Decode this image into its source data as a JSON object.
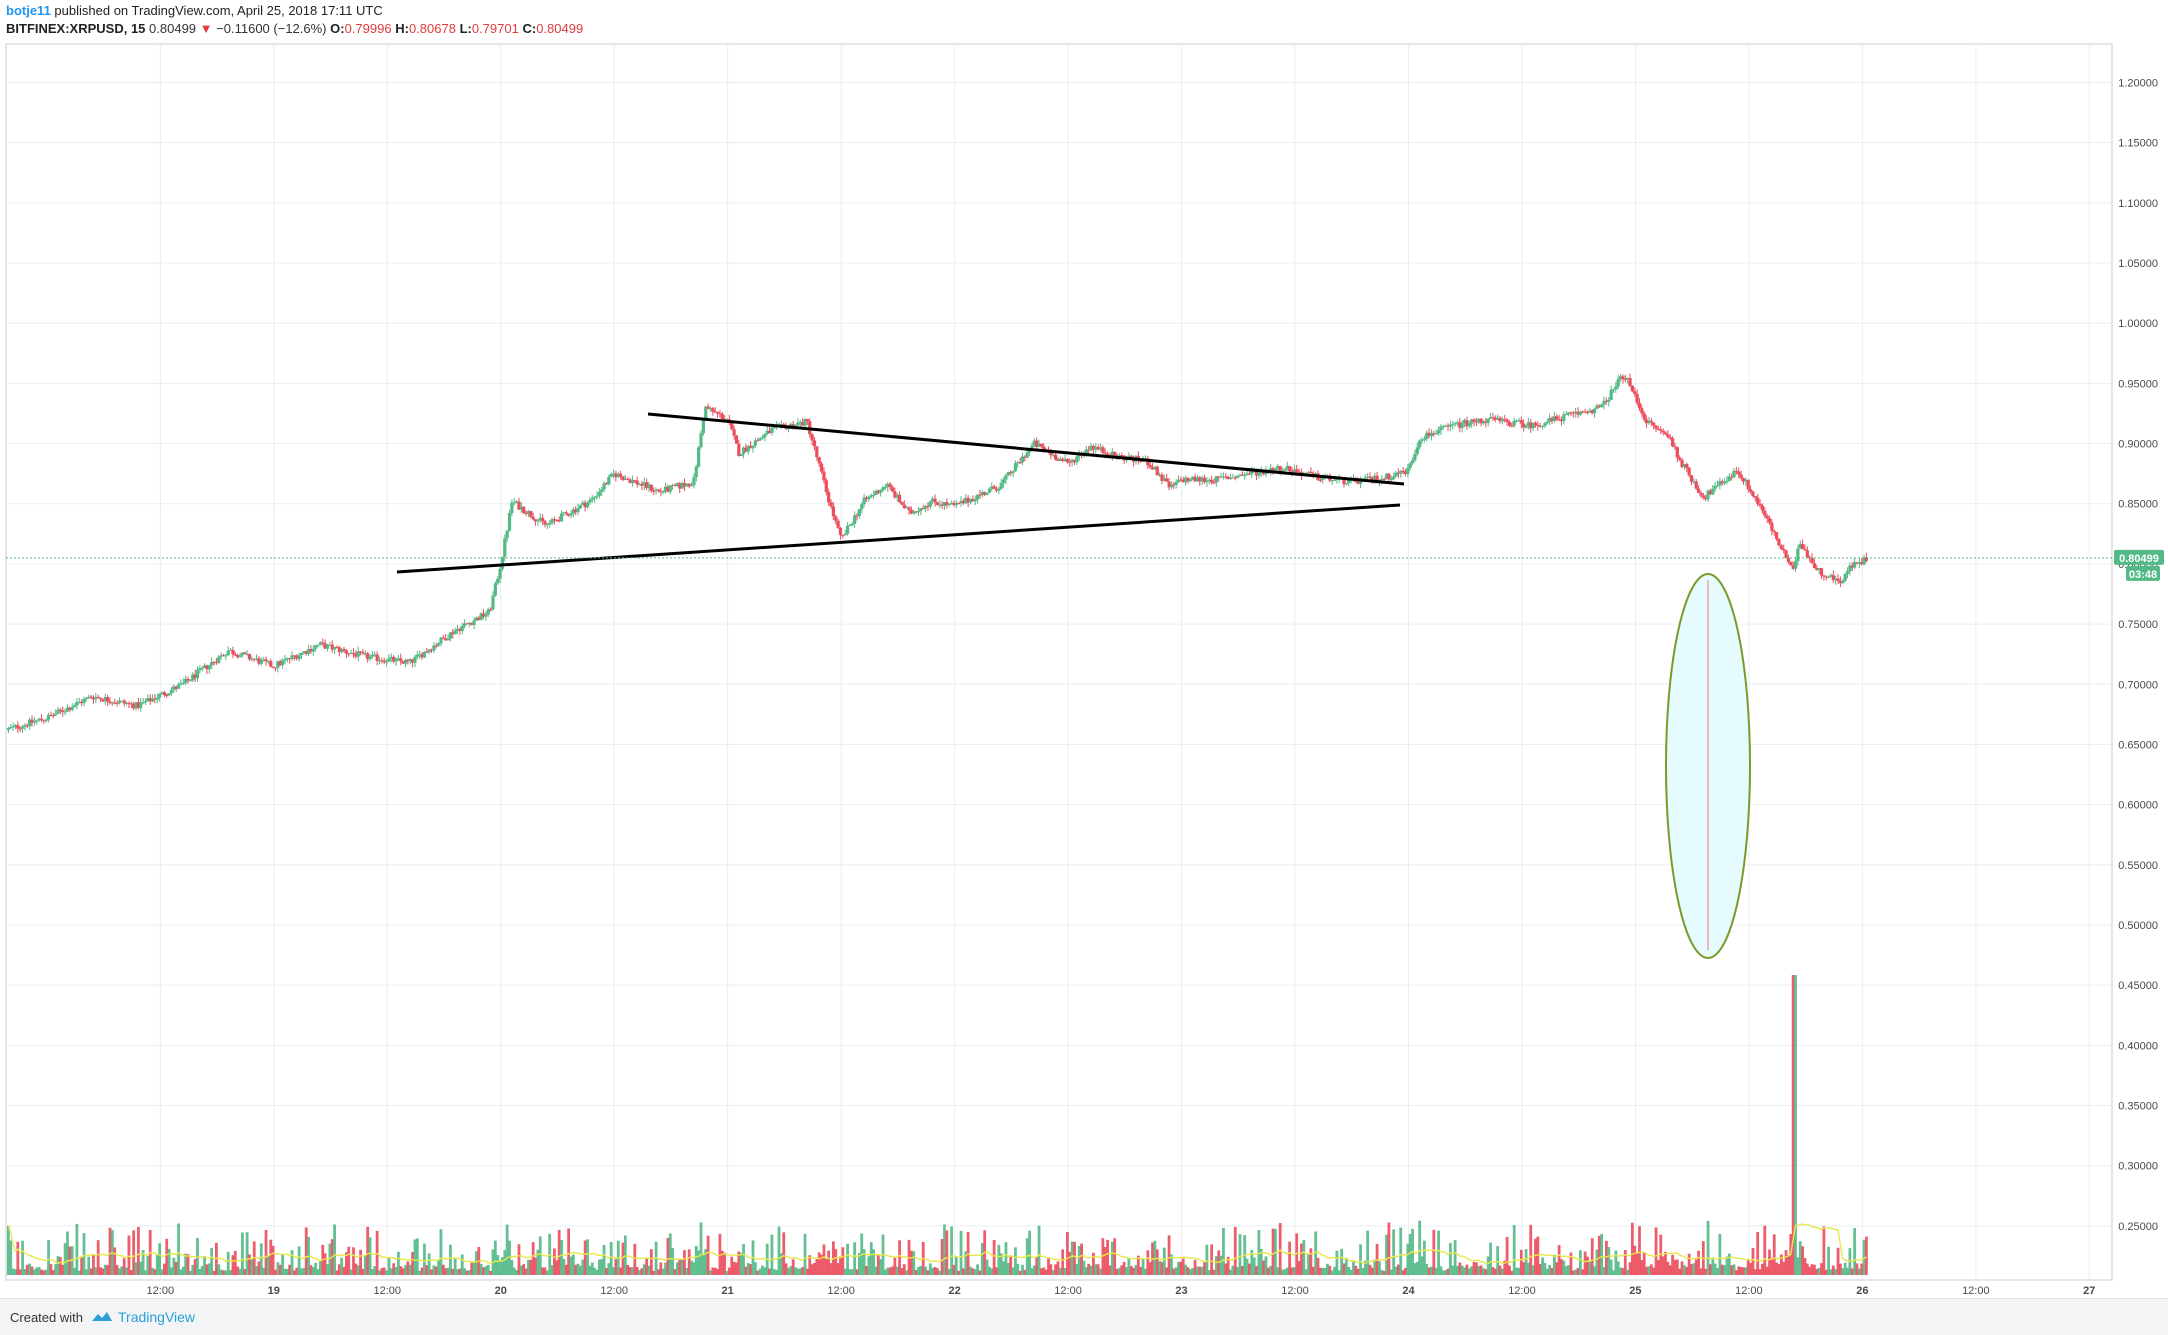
{
  "header": {
    "author": "botje11",
    "published_text": "published on TradingView.com, April 25, 2018 17:11 UTC",
    "symbol": "BITFINEX:XRPUSD, 15",
    "last": "0.80499",
    "change": "−0.11600 (−12.6%)",
    "open_label": "O:",
    "open": "0.79996",
    "high_label": "H:",
    "high": "0.80678",
    "low_label": "L:",
    "low": "0.79701",
    "close_label": "C:",
    "close": "0.80499"
  },
  "footer": {
    "created_with": "Created with",
    "brand": "TradingView"
  },
  "colors": {
    "up": "#53b987",
    "down": "#eb4d5c",
    "grid": "#e9eef2",
    "ma": "#e8e84a",
    "price_badge": "#53b987",
    "ellipse_fill": "#e6fbfd",
    "ellipse_stroke": "#7a9a2a"
  },
  "chart_data": {
    "type": "candlestick",
    "title": "",
    "interval": "15",
    "y_axis": {
      "ticks": [
        "1.20000",
        "1.15000",
        "1.10000",
        "1.05000",
        "1.00000",
        "0.95000",
        "0.90000",
        "0.85000",
        "0.80000",
        "0.75000",
        "0.70000",
        "0.65000",
        "0.60000",
        "0.55000",
        "0.50000",
        "0.45000",
        "0.40000",
        "0.35000",
        "0.30000",
        "0.25000"
      ],
      "range": [
        0.205,
        1.232
      ]
    },
    "x_axis": {
      "ticks": [
        "12:00",
        "19",
        "12:00",
        "20",
        "12:00",
        "21",
        "12:00",
        "22",
        "12:00",
        "23",
        "12:00",
        "24",
        "12:00",
        "25",
        "12:00",
        "26",
        "12:00",
        "27"
      ],
      "tick_days": [
        18.5,
        19,
        19.5,
        20,
        20.5,
        21,
        21.5,
        22,
        22.5,
        23,
        23.5,
        24,
        24.5,
        25,
        25.5,
        26,
        26.5,
        27
      ],
      "range_days": [
        17.82,
        27.1
      ]
    },
    "current_price_label": "0.80499",
    "countdown_label": "03:48",
    "price_path": [
      [
        17.82,
        0.662
      ],
      [
        18.0,
        0.672
      ],
      [
        18.2,
        0.69
      ],
      [
        18.4,
        0.682
      ],
      [
        18.6,
        0.7
      ],
      [
        18.8,
        0.728
      ],
      [
        19.0,
        0.715
      ],
      [
        19.2,
        0.733
      ],
      [
        19.4,
        0.723
      ],
      [
        19.6,
        0.718
      ],
      [
        19.8,
        0.745
      ],
      [
        19.95,
        0.76
      ],
      [
        20.0,
        0.8
      ],
      [
        20.05,
        0.852
      ],
      [
        20.2,
        0.832
      ],
      [
        20.4,
        0.853
      ],
      [
        20.5,
        0.875
      ],
      [
        20.7,
        0.86
      ],
      [
        20.85,
        0.868
      ],
      [
        20.9,
        0.93
      ],
      [
        21.0,
        0.92
      ],
      [
        21.05,
        0.892
      ],
      [
        21.2,
        0.912
      ],
      [
        21.35,
        0.918
      ],
      [
        21.45,
        0.85
      ],
      [
        21.5,
        0.82
      ],
      [
        21.6,
        0.852
      ],
      [
        21.7,
        0.866
      ],
      [
        21.8,
        0.842
      ],
      [
        21.9,
        0.852
      ],
      [
        22.0,
        0.848
      ],
      [
        22.2,
        0.865
      ],
      [
        22.35,
        0.9
      ],
      [
        22.5,
        0.883
      ],
      [
        22.6,
        0.898
      ],
      [
        22.7,
        0.89
      ],
      [
        22.85,
        0.885
      ],
      [
        22.95,
        0.863
      ],
      [
        23.0,
        0.87
      ],
      [
        23.15,
        0.87
      ],
      [
        23.3,
        0.875
      ],
      [
        23.45,
        0.88
      ],
      [
        23.6,
        0.872
      ],
      [
        23.75,
        0.868
      ],
      [
        23.9,
        0.872
      ],
      [
        24.0,
        0.878
      ],
      [
        24.05,
        0.905
      ],
      [
        24.2,
        0.915
      ],
      [
        24.35,
        0.92
      ],
      [
        24.55,
        0.915
      ],
      [
        24.7,
        0.923
      ],
      [
        24.85,
        0.93
      ],
      [
        24.95,
        0.958
      ],
      [
        25.05,
        0.918
      ],
      [
        25.15,
        0.905
      ],
      [
        25.2,
        0.885
      ],
      [
        25.3,
        0.855
      ],
      [
        25.45,
        0.878
      ],
      [
        25.55,
        0.848
      ],
      [
        25.65,
        0.81
      ],
      [
        25.7,
        0.792
      ],
      [
        25.72,
        0.82
      ],
      [
        25.8,
        0.795
      ],
      [
        25.9,
        0.785
      ],
      [
        25.95,
        0.798
      ],
      [
        26.0,
        0.802
      ],
      [
        26.02,
        0.805
      ]
    ],
    "volume_ma_note": "moving average on volume",
    "spike": {
      "day": 25.7,
      "low": 0.485
    }
  }
}
